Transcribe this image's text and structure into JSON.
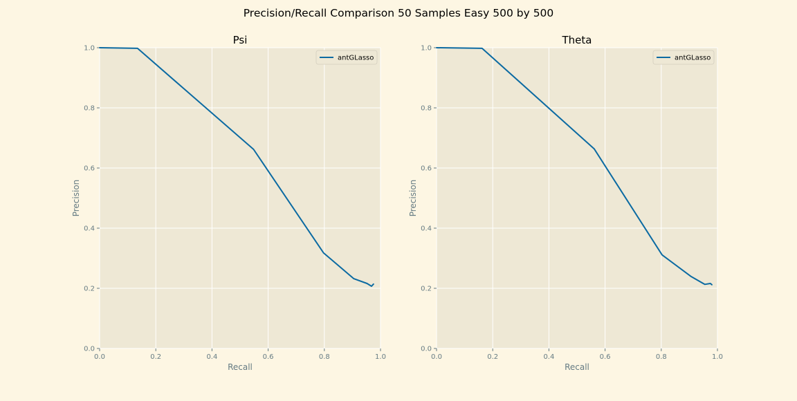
{
  "figure": {
    "suptitle": "Precision/Recall Comparison 50 Samples Easy 500 by 500",
    "background": "#fdf6e3",
    "plot_background": "#eee8d5",
    "grid_color": "#ffffff",
    "line_color": "#0b6aa2",
    "tick_color": "#657b83"
  },
  "chart_data": [
    {
      "type": "line",
      "title": "Psi",
      "xlabel": "Recall",
      "ylabel": "Precision",
      "xlim": [
        0.0,
        1.0
      ],
      "ylim": [
        0.0,
        1.0
      ],
      "xticks": [
        "0.0",
        "0.2",
        "0.4",
        "0.6",
        "0.8",
        "1.0"
      ],
      "yticks": [
        "0.0",
        "0.2",
        "0.4",
        "0.6",
        "0.8",
        "1.0"
      ],
      "grid": true,
      "legend": "top-right",
      "series": [
        {
          "name": "antGLasso",
          "x": [
            0.0,
            0.135,
            0.548,
            0.797,
            0.905,
            0.952,
            0.968,
            0.975
          ],
          "y": [
            1.0,
            0.998,
            0.662,
            0.318,
            0.232,
            0.216,
            0.207,
            0.214
          ]
        }
      ]
    },
    {
      "type": "line",
      "title": "Theta",
      "xlabel": "Recall",
      "ylabel": "Precision",
      "xlim": [
        0.0,
        1.0
      ],
      "ylim": [
        0.0,
        1.0
      ],
      "xticks": [
        "0.0",
        "0.2",
        "0.4",
        "0.6",
        "0.8",
        "1.0"
      ],
      "yticks": [
        "0.0",
        "0.2",
        "0.4",
        "0.6",
        "0.8",
        "1.0"
      ],
      "grid": true,
      "legend": "top-right",
      "series": [
        {
          "name": "antGLasso",
          "x": [
            0.0,
            0.162,
            0.561,
            0.803,
            0.905,
            0.955,
            0.975,
            0.98
          ],
          "y": [
            1.0,
            0.998,
            0.664,
            0.311,
            0.24,
            0.213,
            0.216,
            0.212
          ]
        }
      ]
    }
  ]
}
